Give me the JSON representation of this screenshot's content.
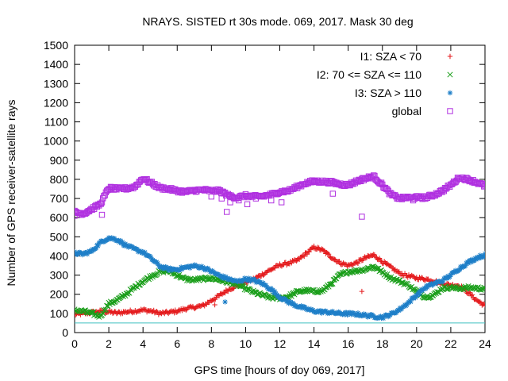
{
  "chart_data": {
    "type": "scatter",
    "title": "NRAYS. SISTED rt 30s mode. 069, 2017. Mask 30 deg",
    "xlabel": "GPS time [hours of doy 069, 2017]",
    "ylabel": "Number of GPS receiver-satellite rays",
    "xlim": [
      0,
      24
    ],
    "ylim": [
      0,
      1500
    ],
    "xticks": [
      0,
      2,
      4,
      6,
      8,
      10,
      12,
      14,
      16,
      18,
      20,
      22,
      24
    ],
    "yticks": [
      0,
      100,
      200,
      300,
      400,
      500,
      600,
      700,
      800,
      900,
      1000,
      1100,
      1200,
      1300,
      1400,
      1500
    ],
    "reference_line": {
      "y": 50,
      "color": "#40c0c0"
    },
    "legend_position": "top-right",
    "series": [
      {
        "name": "I1: SZA < 70",
        "marker": "+",
        "color": "#e41a1c",
        "x": [
          0,
          0.5,
          1,
          1.5,
          2,
          2.5,
          3,
          3.5,
          4,
          4.5,
          5,
          5.5,
          6,
          6.5,
          7,
          7.5,
          8,
          8.5,
          9,
          9.5,
          10,
          10.5,
          11,
          11.5,
          12,
          12.5,
          13,
          13.5,
          14,
          14.5,
          15,
          15.5,
          16,
          16.5,
          17,
          17.5,
          18,
          18.5,
          19,
          19.5,
          20,
          20.5,
          21,
          21.5,
          22,
          22.5,
          23,
          23.5,
          24
        ],
        "y": [
          95,
          100,
          105,
          110,
          108,
          102,
          108,
          112,
          118,
          112,
          100,
          105,
          112,
          125,
          132,
          140,
          168,
          195,
          225,
          245,
          262,
          280,
          305,
          330,
          352,
          362,
          375,
          410,
          445,
          430,
          395,
          365,
          350,
          365,
          390,
          405,
          370,
          340,
          310,
          295,
          285,
          280,
          270,
          255,
          248,
          245,
          210,
          170,
          140
        ],
        "outliers": [
          [
            8.2,
            145
          ],
          [
            16.8,
            215
          ]
        ]
      },
      {
        "name": "I2: 70 <= SZA <= 110",
        "marker": "x",
        "color": "#1a9e1a",
        "x": [
          0,
          0.5,
          1,
          1.5,
          2,
          2.5,
          3,
          3.5,
          4,
          4.5,
          5,
          5.5,
          6,
          6.5,
          7,
          7.5,
          8,
          8.5,
          9,
          9.5,
          10,
          10.5,
          11,
          11.5,
          12,
          12.5,
          13,
          13.5,
          14,
          14.5,
          15,
          15.5,
          16,
          16.5,
          17,
          17.5,
          18,
          18.5,
          19,
          19.5,
          20,
          20.5,
          21,
          21.5,
          22,
          22.5,
          23,
          23.5,
          24
        ],
        "y": [
          115,
          112,
          100,
          85,
          150,
          170,
          200,
          235,
          268,
          295,
          318,
          322,
          300,
          278,
          275,
          280,
          285,
          275,
          262,
          250,
          230,
          210,
          195,
          182,
          180,
          188,
          212,
          220,
          215,
          218,
          255,
          300,
          318,
          322,
          330,
          345,
          315,
          285,
          268,
          248,
          215,
          185,
          195,
          232,
          235,
          230,
          235,
          232,
          228
        ],
        "outliers": []
      },
      {
        "name": "I3: SZA > 110",
        "marker": "*",
        "color": "#1e7fc8",
        "x": [
          0,
          0.5,
          1,
          1.5,
          2,
          2.5,
          3,
          3.5,
          4,
          4.5,
          5,
          5.5,
          6,
          6.5,
          7,
          7.5,
          8,
          8.5,
          9,
          9.5,
          10,
          10.5,
          11,
          11.5,
          12,
          12.5,
          13,
          13.5,
          14,
          14.5,
          15,
          15.5,
          16,
          16.5,
          17,
          17.5,
          18,
          18.5,
          19,
          19.5,
          20,
          20.5,
          21,
          21.5,
          22,
          22.5,
          23,
          23.5,
          24
        ],
        "y": [
          415,
          410,
          425,
          470,
          495,
          485,
          455,
          435,
          420,
          385,
          345,
          330,
          330,
          340,
          348,
          340,
          320,
          295,
          280,
          265,
          280,
          272,
          255,
          225,
          185,
          160,
          140,
          125,
          112,
          108,
          105,
          100,
          98,
          96,
          90,
          85,
          80,
          95,
          120,
          155,
          195,
          235,
          255,
          270,
          300,
          335,
          365,
          390,
          405
        ],
        "outliers": [
          [
            8.8,
            160
          ]
        ]
      },
      {
        "name": "global",
        "marker": "square",
        "color": "#b030e0",
        "x": [
          0,
          0.5,
          1,
          1.5,
          2,
          2.5,
          3,
          3.5,
          4,
          4.5,
          5,
          5.5,
          6,
          6.5,
          7,
          7.5,
          8,
          8.5,
          9,
          9.5,
          10,
          10.5,
          11,
          11.5,
          12,
          12.5,
          13,
          13.5,
          14,
          14.5,
          15,
          15.5,
          16,
          16.5,
          17,
          17.5,
          18,
          18.5,
          19,
          19.5,
          20,
          20.5,
          21,
          21.5,
          22,
          22.5,
          23,
          23.5,
          24
        ],
        "y": [
          630,
          620,
          645,
          670,
          755,
          750,
          752,
          760,
          805,
          780,
          755,
          750,
          740,
          735,
          742,
          745,
          740,
          740,
          715,
          705,
          715,
          710,
          712,
          720,
          735,
          740,
          760,
          780,
          790,
          788,
          785,
          775,
          770,
          790,
          805,
          815,
          770,
          720,
          700,
          705,
          705,
          705,
          718,
          740,
          770,
          810,
          800,
          785,
          765
        ],
        "outliers": [
          [
            0,
            610
          ],
          [
            1.6,
            615
          ],
          [
            8.0,
            710
          ],
          [
            8.6,
            700
          ],
          [
            8.9,
            630
          ],
          [
            9.1,
            680
          ],
          [
            9.6,
            690
          ],
          [
            10.1,
            670
          ],
          [
            10.6,
            700
          ],
          [
            11.5,
            690
          ],
          [
            12.1,
            680
          ],
          [
            15.1,
            725
          ],
          [
            16.8,
            605
          ],
          [
            19.8,
            690
          ]
        ]
      }
    ]
  }
}
